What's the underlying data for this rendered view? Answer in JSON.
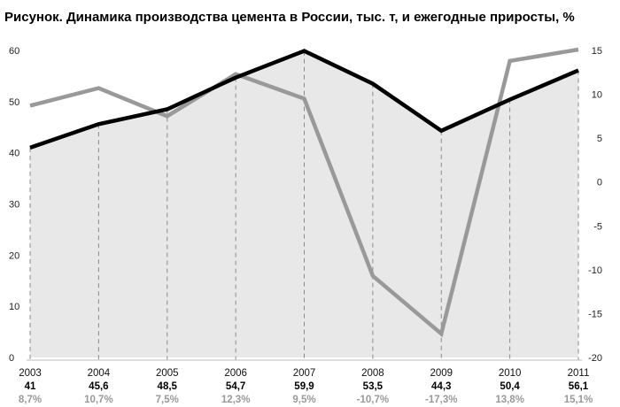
{
  "chart_data": {
    "type": "line",
    "title": "Рисунок. Динамика производства цемента в России, тыс. т, и ежегодные приросты, %",
    "categories": [
      "2003",
      "2004",
      "2005",
      "2006",
      "2007",
      "2008",
      "2009",
      "2010",
      "2011"
    ],
    "series": [
      {
        "axis": "left",
        "style": "area+line",
        "color": "#000000",
        "fill": "#e8e8e8",
        "values": [
          41,
          45.6,
          48.5,
          54.7,
          59.9,
          53.5,
          44.3,
          50.4,
          56.1
        ]
      },
      {
        "axis": "right",
        "style": "line",
        "color": "#999999",
        "values": [
          8.7,
          10.7,
          7.5,
          12.3,
          9.5,
          -10.7,
          -17.3,
          13.8,
          15.1
        ]
      }
    ],
    "value_labels": [
      [
        "41",
        "45,6",
        "48,5",
        "54,7",
        "59,9",
        "53,5",
        "44,3",
        "50,4",
        "56,1"
      ],
      [
        "8,7%",
        "10,7%",
        "7,5%",
        "12,3%",
        "9,5%",
        "-10,7%",
        "-17,3%",
        "13,8%",
        "15,1%"
      ]
    ],
    "y_left": {
      "min": 0,
      "max": 60,
      "ticks": [
        "0",
        "10",
        "20",
        "30",
        "40",
        "50",
        "60"
      ]
    },
    "y_right": {
      "min": -20,
      "max": 15,
      "ticks": [
        "-20",
        "-15",
        "-10",
        "-5",
        "0",
        "5",
        "10",
        "15"
      ]
    },
    "grid": "vertical dashed at categories"
  }
}
